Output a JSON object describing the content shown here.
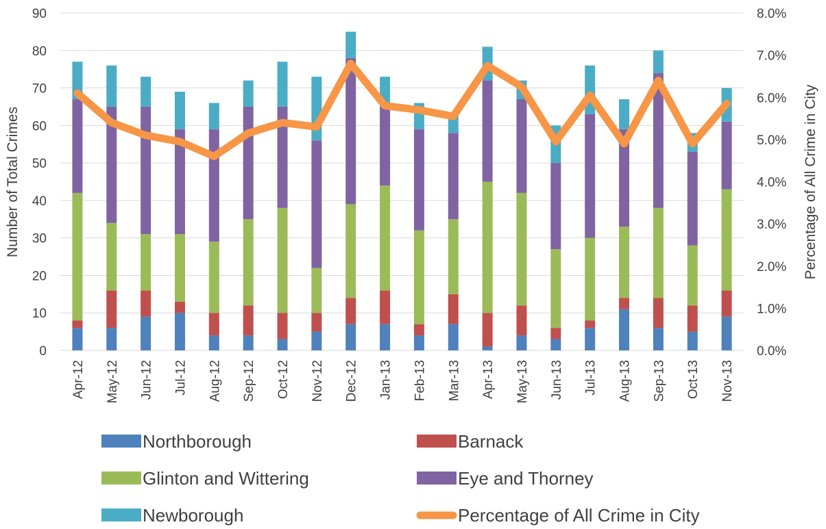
{
  "chart_data": {
    "type": "bar",
    "stacked": true,
    "categories": [
      "Apr-12",
      "May-12",
      "Jun-12",
      "Jul-12",
      "Aug-12",
      "Sep-12",
      "Oct-12",
      "Nov-12",
      "Dec-12",
      "Jan-13",
      "Feb-13",
      "Mar-13",
      "Apr-13",
      "May-13",
      "Jun-13",
      "Jul-13",
      "Aug-13",
      "Sep-13",
      "Oct-13",
      "Nov-13"
    ],
    "series": [
      {
        "name": "Northborough",
        "color": "#4f81bd",
        "values": [
          6,
          6,
          9,
          10,
          4,
          4,
          3,
          5,
          7,
          7,
          4,
          7,
          1,
          4,
          3,
          6,
          11,
          6,
          5,
          9
        ]
      },
      {
        "name": "Barnack",
        "color": "#c0504d",
        "values": [
          2,
          10,
          7,
          3,
          6,
          8,
          7,
          5,
          7,
          9,
          3,
          8,
          9,
          8,
          3,
          2,
          3,
          8,
          7,
          7
        ]
      },
      {
        "name": "Glinton and Wittering",
        "color": "#9bbb59",
        "values": [
          34,
          18,
          15,
          18,
          19,
          23,
          28,
          12,
          25,
          28,
          25,
          20,
          35,
          30,
          21,
          22,
          19,
          24,
          16,
          27
        ]
      },
      {
        "name": "Eye and Thorney",
        "color": "#8064a2",
        "values": [
          25,
          31,
          34,
          28,
          30,
          30,
          27,
          34,
          39,
          21,
          27,
          23,
          27,
          25,
          23,
          33,
          26,
          36,
          25,
          18
        ]
      },
      {
        "name": "Newborough",
        "color": "#4bacc6",
        "values": [
          10,
          11,
          8,
          10,
          7,
          7,
          12,
          17,
          7,
          8,
          7,
          5,
          9,
          5,
          10,
          13,
          8,
          6,
          5,
          9
        ]
      }
    ],
    "line_series": {
      "name": "Percentage of All Crime in City",
      "color": "#f79646",
      "axis": "right",
      "values": [
        0.061,
        0.054,
        0.051,
        0.0495,
        0.046,
        0.0515,
        0.054,
        0.053,
        0.068,
        0.058,
        0.057,
        0.0555,
        0.0675,
        0.0625,
        0.0495,
        0.0605,
        0.049,
        0.064,
        0.049,
        0.0585
      ]
    },
    "ylabel": "Number of Total Crimes",
    "ylim": [
      0,
      90
    ],
    "yticks": [
      "0",
      "10",
      "20",
      "30",
      "40",
      "50",
      "60",
      "70",
      "80",
      "90"
    ],
    "y2label": "Percentage of All Crime in City",
    "y2lim": [
      0,
      0.08
    ],
    "y2ticks": [
      "0.0%",
      "1.0%",
      "2.0%",
      "3.0%",
      "4.0%",
      "5.0%",
      "6.0%",
      "7.0%",
      "8.0%"
    ],
    "grid": true,
    "legend_position": "bottom"
  }
}
